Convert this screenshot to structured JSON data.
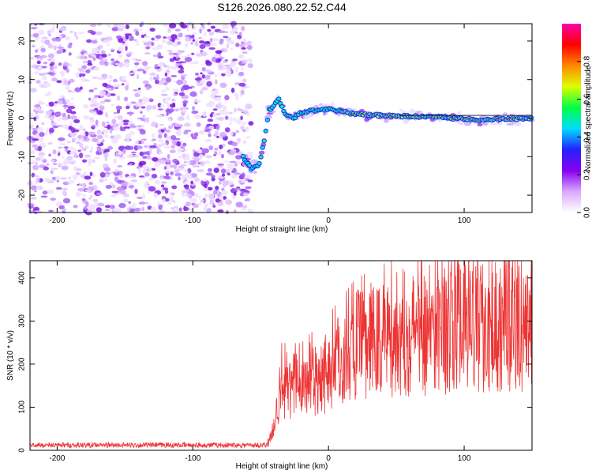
{
  "title": "S126.2026.080.22.52.C44",
  "chart_data": [
    {
      "type": "heatmap",
      "name": "spectrogram",
      "xlabel": "Height of straight line (km)",
      "ylabel": "Frequency (Hz)",
      "xlim": [
        -220,
        150
      ],
      "ylim": [
        -24.5,
        24.5
      ],
      "xticks": [
        -200,
        -100,
        0,
        100
      ],
      "yticks": [
        -20,
        -10,
        0,
        10,
        20
      ],
      "colorbar": {
        "label": "Normalized spectral amplitude",
        "range": [
          0,
          1
        ],
        "ticks": [
          0,
          0.2,
          0.4,
          0.6,
          0.8
        ],
        "tick_labels": [
          "0.0",
          "0.2",
          "0.4",
          "0.6",
          "0.8"
        ],
        "colors": [
          "#ffffff",
          "#d9a8ff",
          "#8800ee",
          "#2222ff",
          "#00ddff",
          "#00ff44",
          "#ddff00",
          "#ff8800",
          "#ff0000",
          "#ff00aa"
        ]
      },
      "noise_region": {
        "x": [
          -220,
          -57
        ],
        "freq": [
          -24.5,
          24.5
        ]
      },
      "signal_track": [
        {
          "x": -63,
          "f": -10
        },
        {
          "x": -57,
          "f": -13
        },
        {
          "x": -51,
          "f": -12
        },
        {
          "x": -47,
          "f": -5
        },
        {
          "x": -44,
          "f": 2
        },
        {
          "x": -41,
          "f": 3
        },
        {
          "x": -37,
          "f": 5
        },
        {
          "x": -32,
          "f": 1
        },
        {
          "x": -26,
          "f": 0
        },
        {
          "x": -20,
          "f": 1.5
        },
        {
          "x": -10,
          "f": 2
        },
        {
          "x": 0,
          "f": 2.5
        },
        {
          "x": 20,
          "f": 1
        },
        {
          "x": 50,
          "f": 0.5
        },
        {
          "x": 80,
          "f": 0.3
        },
        {
          "x": 110,
          "f": -0.5
        },
        {
          "x": 150,
          "f": 0
        }
      ]
    },
    {
      "type": "line",
      "name": "snr",
      "xlabel": "Height of straight line (km)",
      "ylabel": "SNR (10 * v/v)",
      "xlim": [
        -220,
        150
      ],
      "ylim": [
        0,
        440
      ],
      "xticks": [
        -200,
        -100,
        0,
        100
      ],
      "yticks": [
        0,
        100,
        200,
        300,
        400
      ],
      "color": "#ee3333",
      "series": [
        {
          "name": "SNR",
          "trend": [
            {
              "x": -220,
              "y": 12
            },
            {
              "x": -45,
              "y": 12
            },
            {
              "x": -40,
              "y": 60
            },
            {
              "x": -35,
              "y": 150
            },
            {
              "x": -20,
              "y": 150
            },
            {
              "x": 0,
              "y": 190
            },
            {
              "x": 20,
              "y": 240
            },
            {
              "x": 50,
              "y": 270
            },
            {
              "x": 100,
              "y": 290
            },
            {
              "x": 150,
              "y": 295
            }
          ],
          "peak_max": 440
        }
      ]
    }
  ]
}
